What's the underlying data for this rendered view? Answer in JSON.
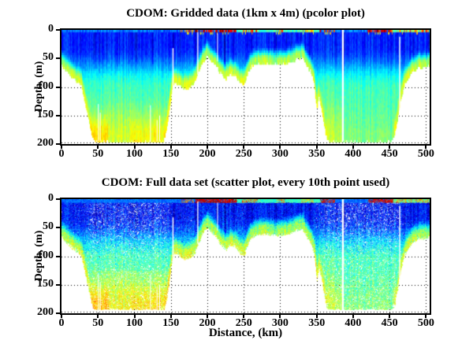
{
  "figure": {
    "background": "#ffffff",
    "axis_color": "#000000",
    "nodata_color": "#ffffff"
  },
  "subplots": [
    {
      "title": "CDOM: Gridded data (1km x 4m) (pcolor plot)",
      "ylabel": "Depth, (m)",
      "xlabel": "",
      "type": "pcolor",
      "xlim": [
        0,
        505
      ],
      "ylim": [
        0,
        200
      ],
      "ydir": "reverse",
      "xticks": [
        0,
        50,
        100,
        150,
        200,
        250,
        300,
        350,
        400,
        450,
        500
      ],
      "yticks": [
        0,
        50,
        100,
        150,
        200
      ],
      "grid": "dotted"
    },
    {
      "title": "CDOM: Full data set (scatter plot, every 10th point used)",
      "ylabel": "Depth, (m)",
      "xlabel": "Distance, (km)",
      "type": "scatter",
      "xlim": [
        0,
        505
      ],
      "ylim": [
        0,
        200
      ],
      "ydir": "reverse",
      "xticks": [
        0,
        50,
        100,
        150,
        200,
        250,
        300,
        350,
        400,
        450,
        500
      ],
      "yticks": [
        0,
        50,
        100,
        150,
        200
      ],
      "grid": "dotted"
    }
  ],
  "chart_data": {
    "type": [
      "pcolor",
      "scatter"
    ],
    "colormap": "jet",
    "value_units": "relative CDOM intensity (0-1, jet colormap)",
    "x_units": "km",
    "y_units": "m depth",
    "max_data_depth_m": 194,
    "bottom_profile": [
      [
        0,
        62
      ],
      [
        5,
        70
      ],
      [
        10,
        76
      ],
      [
        15,
        82
      ],
      [
        20,
        88
      ],
      [
        25,
        93
      ],
      [
        28,
        100
      ],
      [
        32,
        125
      ],
      [
        38,
        160
      ],
      [
        43,
        190
      ],
      [
        46,
        195
      ],
      [
        140,
        195
      ],
      [
        144,
        175
      ],
      [
        148,
        135
      ],
      [
        152,
        100
      ],
      [
        155,
        90
      ],
      [
        160,
        94
      ],
      [
        168,
        102
      ],
      [
        175,
        100
      ],
      [
        182,
        92
      ],
      [
        188,
        72
      ],
      [
        194,
        55
      ],
      [
        200,
        44
      ],
      [
        205,
        52
      ],
      [
        212,
        62
      ],
      [
        218,
        75
      ],
      [
        225,
        85
      ],
      [
        232,
        76
      ],
      [
        238,
        78
      ],
      [
        244,
        90
      ],
      [
        250,
        96
      ],
      [
        255,
        76
      ],
      [
        260,
        63
      ],
      [
        268,
        58
      ],
      [
        280,
        57
      ],
      [
        295,
        59
      ],
      [
        310,
        57
      ],
      [
        322,
        50
      ],
      [
        330,
        47
      ],
      [
        336,
        62
      ],
      [
        342,
        72
      ],
      [
        347,
        95
      ],
      [
        350,
        140
      ],
      [
        353,
        115
      ],
      [
        357,
        140
      ],
      [
        360,
        165
      ],
      [
        364,
        190
      ],
      [
        367,
        195
      ],
      [
        452,
        195
      ],
      [
        457,
        182
      ],
      [
        461,
        155
      ],
      [
        465,
        122
      ],
      [
        470,
        96
      ],
      [
        476,
        81
      ],
      [
        482,
        70
      ],
      [
        490,
        66
      ],
      [
        500,
        64
      ],
      [
        505,
        63
      ]
    ],
    "data_gaps": [
      [
        50.5,
        1.0,
        130,
        195
      ],
      [
        53,
        0.8,
        145,
        195
      ],
      [
        122,
        1.0,
        132,
        195
      ],
      [
        131,
        0.8,
        158,
        195
      ],
      [
        134.5,
        0.8,
        150,
        195
      ],
      [
        153,
        1.6,
        32,
        195
      ],
      [
        187,
        1.4,
        4,
        78
      ],
      [
        214,
        1.0,
        6,
        55
      ],
      [
        386,
        2.6,
        0,
        195
      ],
      [
        464,
        1.5,
        12,
        148
      ]
    ],
    "surface_hotspots": [
      [
        163,
        181,
        0.76,
        0.45
      ],
      [
        183,
        240,
        0.92,
        0.8
      ],
      [
        247,
        268,
        0.8,
        0.5
      ],
      [
        294,
        306,
        0.74,
        0.4
      ],
      [
        328,
        346,
        0.66,
        0.45
      ],
      [
        354,
        375,
        0.88,
        0.65
      ],
      [
        420,
        455,
        0.9,
        0.75
      ],
      [
        456,
        505,
        0.74,
        0.45
      ]
    ],
    "surface_cyan": [
      [
        236,
        356,
        0.43
      ],
      [
        452,
        505,
        0.46
      ]
    ],
    "deep_green": [
      [
        0,
        150,
        0.8
      ],
      [
        150,
        385,
        0.65
      ],
      [
        385,
        470,
        0.3
      ],
      [
        470,
        505,
        0.55
      ]
    ],
    "deep_yellow": [
      [
        40,
        64,
        0.09
      ],
      [
        95,
        142,
        0.05
      ]
    ]
  }
}
